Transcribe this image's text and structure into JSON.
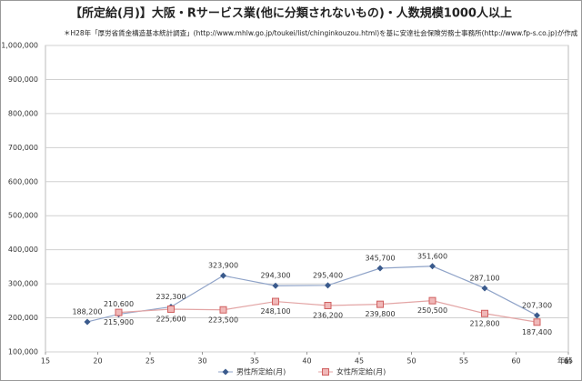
{
  "chart_data": {
    "type": "line",
    "title": "【所定給(月)】大阪・Rサービス業(他に分類されないもの)・人数規模1000人以上",
    "subtitle": "＊H28年「厚労省賃金構造基本統計調査」(http://www.mhlw.go.jp/toukei/list/chinginkouzou.html)を基に安達社会保険労務士事務所(http://www.fp-s.co.jp)が作成",
    "x_label": "年齢",
    "x": [
      19,
      22,
      27,
      32,
      37,
      42,
      47,
      52,
      57,
      62
    ],
    "series": [
      {
        "name": "男性所定給(月)",
        "color": "#3a5a8c",
        "line_color": "#8fa3c8",
        "marker": "diamond",
        "values": [
          188200,
          210600,
          232300,
          323900,
          294300,
          295400,
          345700,
          351600,
          287100,
          207300
        ],
        "value_labels": [
          "188,200",
          "210,600",
          "232,300",
          "323,900",
          "294,300",
          "295,400",
          "345,700",
          "351,600",
          "287,100",
          "207,300"
        ]
      },
      {
        "name": "女性所定給(月)",
        "color": "#d06060",
        "line_color": "#e3a5a5",
        "marker": "square",
        "values": [
          null,
          215900,
          225600,
          223500,
          248100,
          236200,
          239800,
          250500,
          212800,
          187400
        ],
        "value_labels": [
          null,
          "215,900",
          "225,600",
          "223,500",
          "248,100",
          "236,200",
          "239,800",
          "250,500",
          "212,800",
          "187,400"
        ]
      }
    ],
    "xlim": [
      15,
      65
    ],
    "xticks": [
      15,
      20,
      25,
      30,
      35,
      40,
      45,
      50,
      55,
      60,
      65
    ],
    "ylim": [
      100000,
      1000000
    ],
    "yticks": [
      {
        "value": 100000,
        "label": "100,000"
      },
      {
        "value": 200000,
        "label": "200,000"
      },
      {
        "value": 300000,
        "label": "300,000"
      },
      {
        "value": 400000,
        "label": "400,000"
      },
      {
        "value": 500000,
        "label": "500,000"
      },
      {
        "value": 600000,
        "label": "600,000"
      },
      {
        "value": 700000,
        "label": "700,000"
      },
      {
        "value": 800000,
        "label": "800,000"
      },
      {
        "value": 900000,
        "label": "900,000"
      },
      {
        "value": 1000000,
        "label": "1,000,000"
      }
    ],
    "grid": true,
    "legend": "bottom"
  }
}
